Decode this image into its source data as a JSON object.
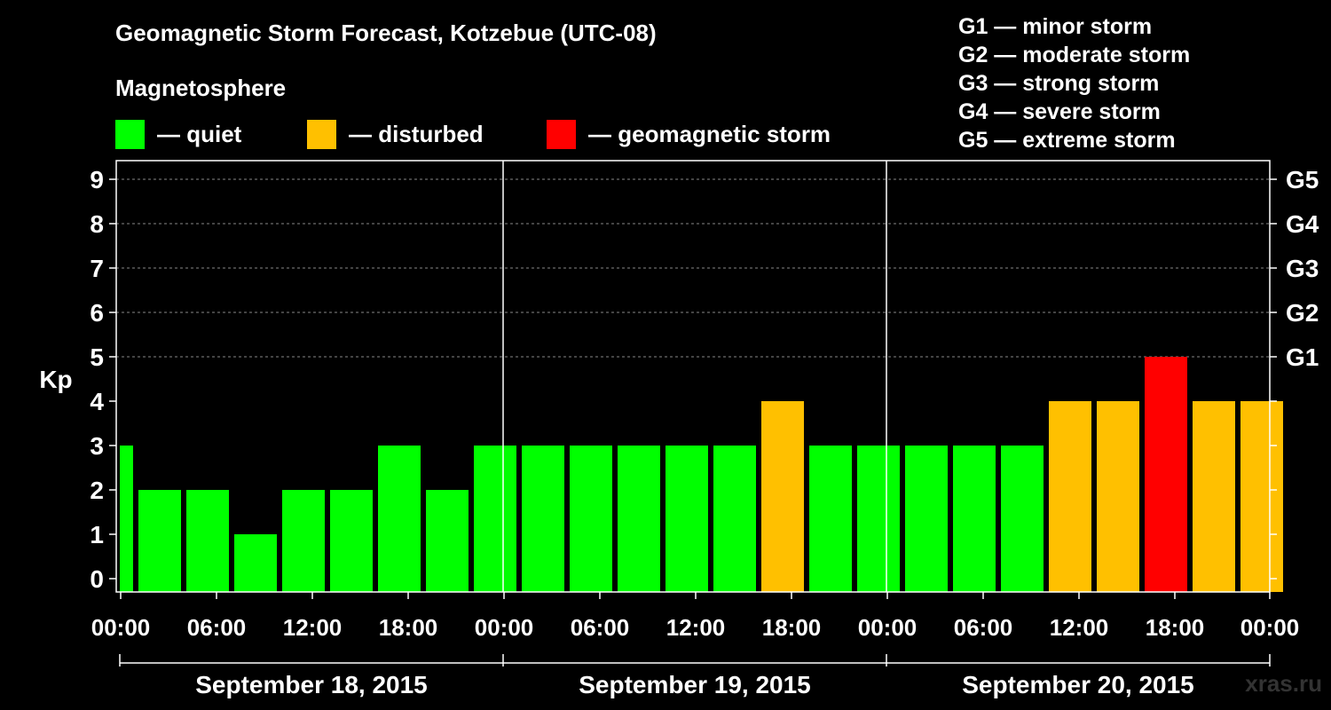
{
  "chart_data": {
    "type": "bar",
    "title": "Geomagnetic Storm Forecast, Kotzebue (UTC-08)",
    "subtitle": "Magnetosphere",
    "ylabel": "Kp",
    "ylim": [
      0,
      9
    ],
    "yticks": [
      "0",
      "1",
      "2",
      "3",
      "4",
      "5",
      "6",
      "7",
      "8",
      "9"
    ],
    "grid": true,
    "legend": [
      {
        "label": "— quiet",
        "color": "#00ff00"
      },
      {
        "label": "— disturbed",
        "color": "#ffc000"
      },
      {
        "label": "— geomagnetic storm",
        "color": "#ff0000"
      }
    ],
    "storm_scale": [
      {
        "level": "G1",
        "kp": 5,
        "desc": "G1 — minor storm"
      },
      {
        "level": "G2",
        "kp": 6,
        "desc": "G2 — moderate storm"
      },
      {
        "level": "G3",
        "kp": 7,
        "desc": "G3 — strong storm"
      },
      {
        "level": "G4",
        "kp": 8,
        "desc": "G4 — severe storm"
      },
      {
        "level": "G5",
        "kp": 9,
        "desc": "G5 — extreme storm"
      }
    ],
    "xticks": [
      "00:00",
      "06:00",
      "12:00",
      "18:00",
      "00:00",
      "06:00",
      "12:00",
      "18:00",
      "00:00",
      "06:00",
      "12:00",
      "18:00",
      "00:00"
    ],
    "days": [
      "September 18, 2015",
      "September 19, 2015",
      "September 20, 2015"
    ],
    "values": [
      3,
      2,
      2,
      1,
      2,
      2,
      3,
      2,
      3,
      3,
      3,
      3,
      3,
      3,
      4,
      3,
      3,
      3,
      3,
      3,
      4,
      4,
      5,
      4,
      4
    ],
    "colors": {
      "quiet": "#00ff00",
      "disturbed": "#ffc000",
      "storm": "#ff0000"
    }
  },
  "watermark": "xras.ru"
}
